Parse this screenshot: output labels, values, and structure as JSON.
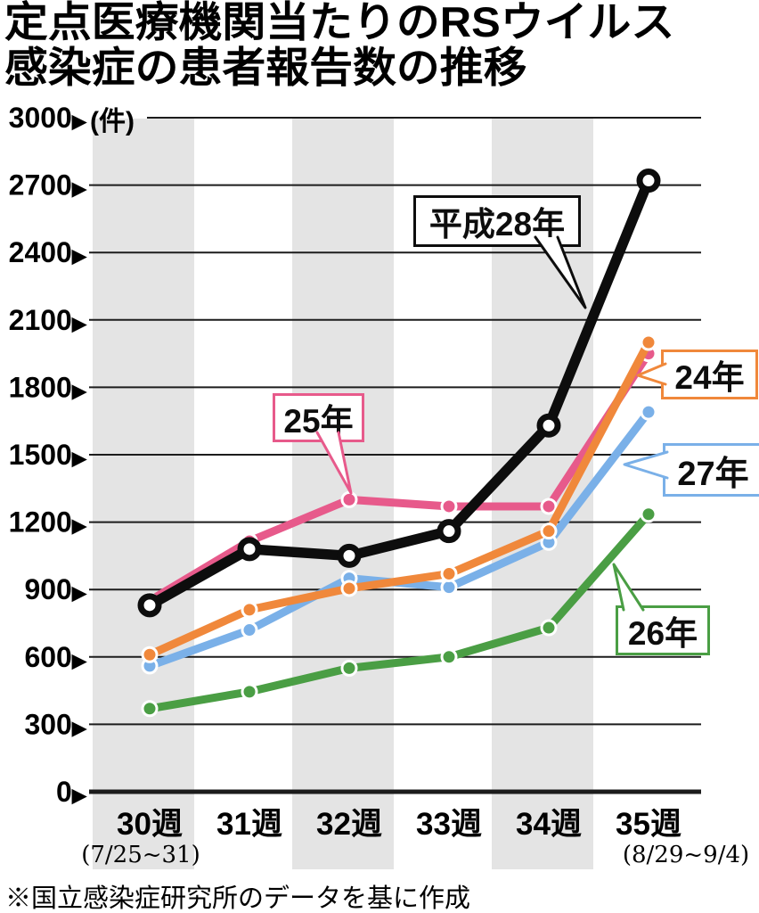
{
  "title": {
    "line1": "定点医療機関当たりのRSウイルス",
    "line2": "感染症の患者報告数の推移"
  },
  "footer": {
    "source_note": "※国立感染症研究所のデータを基に作成"
  },
  "colors": {
    "h28_black": "#0d0d0d",
    "h24_orange": "#f0883b",
    "h25_pink": "#e75a8b",
    "h26_green": "#4a9e44",
    "h27_blue": "#7ab0e8",
    "shaded_band_gray": "#e4e4e4",
    "gridline": "#1c1c1c"
  },
  "chart_data": {
    "type": "line",
    "unit_label": "(件)",
    "tick_arrow": "▶",
    "categories": [
      "30週",
      "31週",
      "32週",
      "33週",
      "34週",
      "35週"
    ],
    "category_sublabels": [
      {
        "index": 0,
        "text": "(7/25~31)"
      },
      {
        "index": 5,
        "text": "(8/29~9/4)"
      }
    ],
    "ylim": [
      0,
      3000
    ],
    "yticks": [
      0,
      300,
      600,
      900,
      1200,
      1500,
      1800,
      2100,
      2400,
      2700,
      3000
    ],
    "grid": true,
    "shaded_week_indices": [
      0,
      2,
      4
    ],
    "series": [
      {
        "name": "26年",
        "color": "#4a9e44",
        "marker": "dot",
        "values": [
          370,
          445,
          550,
          600,
          730,
          1235
        ]
      },
      {
        "name": "27年",
        "color": "#7ab0e8",
        "marker": "dot",
        "values": [
          560,
          720,
          950,
          910,
          1110,
          1690
        ]
      },
      {
        "name": "25年",
        "color": "#e75a8b",
        "marker": "dot",
        "values": [
          850,
          1115,
          1300,
          1270,
          1270,
          1950
        ]
      },
      {
        "name": "24年",
        "color": "#f0883b",
        "marker": "dot",
        "values": [
          610,
          810,
          905,
          970,
          1160,
          2000
        ]
      },
      {
        "name": "平成28年",
        "color": "#0d0d0d",
        "marker": "donut",
        "values": [
          830,
          1080,
          1050,
          1160,
          1630,
          2720
        ]
      }
    ],
    "annotations": [
      {
        "label": "平成28年",
        "series_index": 4
      },
      {
        "label": "25年",
        "series_index": 2
      },
      {
        "label": "24年",
        "series_index": 3
      },
      {
        "label": "27年",
        "series_index": 1
      },
      {
        "label": "26年",
        "series_index": 0
      }
    ]
  }
}
